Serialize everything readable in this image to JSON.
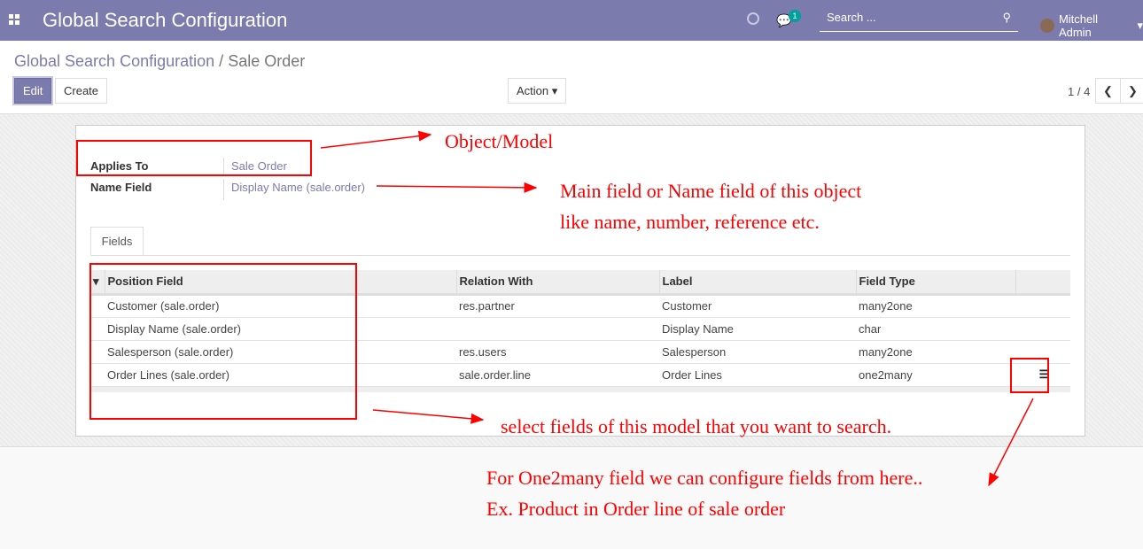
{
  "nav": {
    "title": "Global Search Configuration",
    "chat_count": "1",
    "search_placeholder": "Search ...",
    "user": "Mitchell Admin"
  },
  "breadcrumb": {
    "parent": "Global Search Configuration",
    "sep": "/",
    "current": "Sale Order"
  },
  "buttons": {
    "edit": "Edit",
    "create": "Create",
    "action": "Action ▾"
  },
  "pager": {
    "value": "1 / 4"
  },
  "form": {
    "applies_to_label": "Applies To",
    "applies_to": "Sale Order",
    "name_field_label": "Name Field",
    "name_field": "Display Name (sale.order)"
  },
  "tabs": [
    {
      "label": "Fields"
    }
  ],
  "table": {
    "headers": [
      "Position Field",
      "Relation With",
      "Label",
      "Field Type"
    ],
    "rows": [
      [
        "Customer (sale.order)",
        "res.partner",
        "Customer",
        "many2one"
      ],
      [
        "Display Name (sale.order)",
        "",
        "Display Name",
        "char"
      ],
      [
        "Salesperson (sale.order)",
        "res.users",
        "Salesperson",
        "many2one"
      ],
      [
        "Order Lines (sale.order)",
        "sale.order.line",
        "Order Lines",
        "one2many"
      ]
    ]
  },
  "annotations": {
    "object": "Object/Model",
    "main1": "Main field or Name field of this object",
    "main2": "like name, number, reference etc.",
    "select": "select fields of this model that you want to search.",
    "o2m1": "For One2many field we can configure fields from here..",
    "o2m2": "Ex. Product in Order line of sale order",
    "color": "#ff0000"
  }
}
